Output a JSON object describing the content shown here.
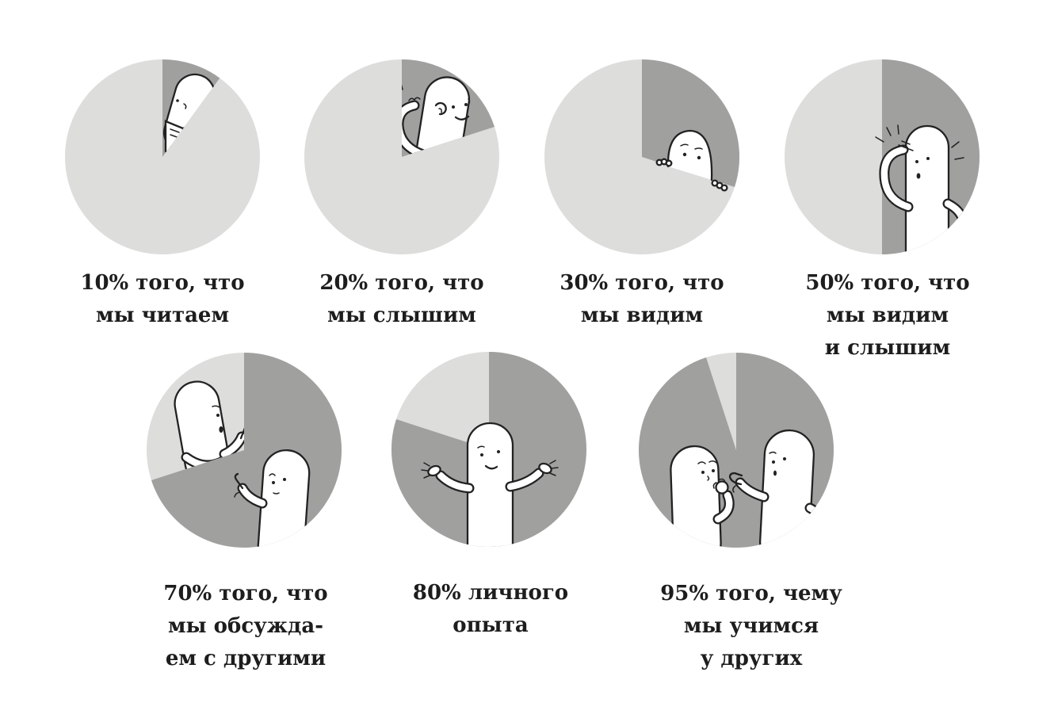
{
  "page": {
    "background": "#ffffff",
    "description": "Infographic: seven pie charts showing how much we learn from different activities, with cartoon blob characters"
  },
  "colors": {
    "highlight_slice": "#a0a09f",
    "remainder_slice": "#dddddc",
    "text": "#1d1d1d",
    "character_fill": "#ffffff",
    "character_stroke": "#222222"
  },
  "chart_data": {
    "type": "pie",
    "unit": "percent",
    "slice_start": "12 o'clock, clockwise",
    "legend": "none",
    "pies": [
      {
        "percent": 10,
        "remainder": 90,
        "label": "10% того, что мы читаем",
        "label_lines": [
          "10% того, что",
          "мы читаем"
        ],
        "figure": "reading",
        "figure_desc": "blob character reading an open book inside the slice",
        "clip": "wedge"
      },
      {
        "percent": 20,
        "remainder": 80,
        "label": "20% того, что мы слышим",
        "label_lines": [
          "20% того, что",
          "мы слышим"
        ],
        "figure": "listening",
        "figure_desc": "blob character cupping hand to ear",
        "clip": "wedge"
      },
      {
        "percent": 30,
        "remainder": 70,
        "label": "30% того, что мы видим",
        "label_lines": [
          "30% того, что",
          "мы видим"
        ],
        "figure": "peeking",
        "figure_desc": "blob character peeking over the slice edge",
        "clip": "circle"
      },
      {
        "percent": 50,
        "remainder": 50,
        "label": "50% того, что мы видим и слышим",
        "label_lines": [
          "50% того, что",
          "мы видим",
          "и слышим"
        ],
        "figure": "watching",
        "figure_desc": "blob character shading eyes and looking out",
        "clip": "circle"
      },
      {
        "percent": 70,
        "remainder": 30,
        "label": "70% того, что мы обсуждаем с другими",
        "label_lines": [
          "70% того, что",
          "мы обсужда-",
          "ем с другими"
        ],
        "figure": "discussing",
        "figure_desc": "two blob characters discussing, one gesturing",
        "clip": "circle"
      },
      {
        "percent": 80,
        "remainder": 20,
        "label": "80% личного опыта",
        "label_lines": [
          "80% личного",
          "опыта"
        ],
        "figure": "shrugging",
        "figure_desc": "blob character shrugging with both arms out",
        "clip": "circle"
      },
      {
        "percent": 95,
        "remainder": 5,
        "label": "95% того, чему мы учимся у других",
        "label_lines": [
          "95% того, чему",
          "мы учимся",
          "у других"
        ],
        "figure": "teaching",
        "figure_desc": "one blob thinking with hand on chin, another pointing while explaining",
        "clip": "circle"
      }
    ]
  }
}
